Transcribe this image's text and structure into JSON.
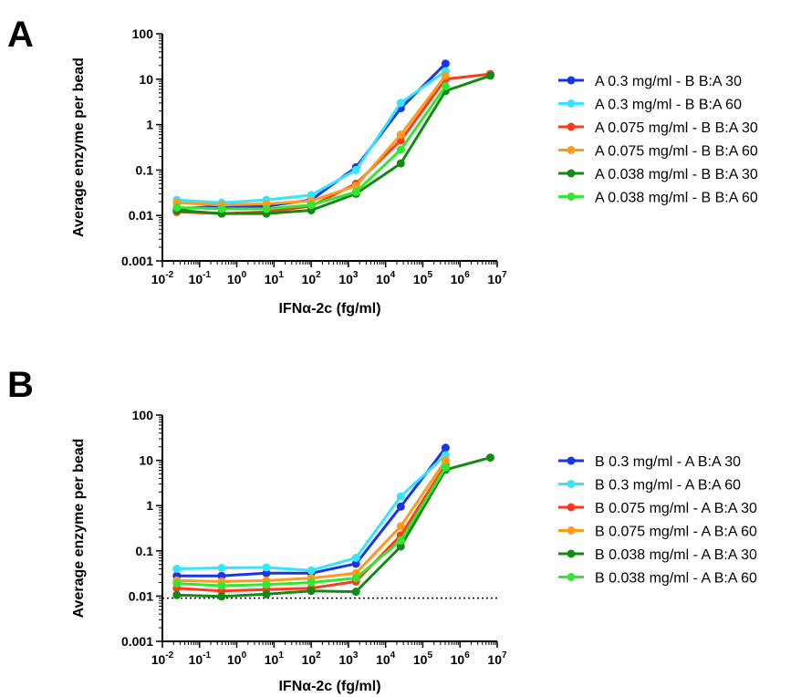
{
  "panels": [
    {
      "letter": "A"
    },
    {
      "letter": "B"
    }
  ],
  "chart_data": [
    {
      "type": "line",
      "panel": "A",
      "xlabel": "IFNα-2c (fg/ml)",
      "ylabel": "Average enzyme per bead",
      "xscale": "log",
      "yscale": "log",
      "xlim": [
        0.01,
        10000000
      ],
      "ylim": [
        0.001,
        100
      ],
      "x_ticks": [
        {
          "base": "10",
          "exp": "-2"
        },
        {
          "base": "10",
          "exp": "-1"
        },
        {
          "base": "10",
          "exp": "0"
        },
        {
          "base": "10",
          "exp": "1"
        },
        {
          "base": "10",
          "exp": "2"
        },
        {
          "base": "10",
          "exp": "3"
        },
        {
          "base": "10",
          "exp": "4"
        },
        {
          "base": "10",
          "exp": "5"
        },
        {
          "base": "10",
          "exp": "6"
        },
        {
          "base": "10",
          "exp": "7"
        }
      ],
      "y_ticks": [
        "0.001",
        "0.01",
        "0.1",
        "1",
        "10",
        "100"
      ],
      "legend": "right",
      "series": [
        {
          "name": "A 0.3 mg/ml - B B:A 30",
          "color": "#1a35e6",
          "x": [
            0.0244,
            0.39,
            6.25,
            100,
            1600,
            25600,
            409600
          ],
          "y": [
            0.014,
            0.016,
            0.016,
            0.022,
            0.115,
            2.3,
            22
          ]
        },
        {
          "name": "A 0.3 mg/ml - B B:A 60",
          "color": "#33e5ff",
          "x": [
            0.0244,
            0.39,
            6.25,
            100,
            1600,
            25600,
            409600
          ],
          "y": [
            0.022,
            0.019,
            0.022,
            0.028,
            0.1,
            3.0,
            15
          ]
        },
        {
          "name": "A 0.075 mg/ml - B B:A 30",
          "color": "#ff3a1a",
          "x": [
            0.0244,
            0.39,
            6.25,
            100,
            1600,
            25600,
            409600,
            6553600
          ],
          "y": [
            0.012,
            0.011,
            0.012,
            0.016,
            0.05,
            0.45,
            10,
            13
          ]
        },
        {
          "name": "A 0.075 mg/ml - B B:A 60",
          "color": "#ff9a1a",
          "x": [
            0.0244,
            0.39,
            6.25,
            100,
            1600,
            25600,
            409600
          ],
          "y": [
            0.019,
            0.017,
            0.018,
            0.021,
            0.045,
            0.6,
            12
          ]
        },
        {
          "name": "A 0.038 mg/ml - B B:A 30",
          "color": "#138a13",
          "x": [
            0.0244,
            0.39,
            6.25,
            100,
            1600,
            25600,
            409600,
            6553600
          ],
          "y": [
            0.013,
            0.011,
            0.011,
            0.013,
            0.03,
            0.14,
            5.5,
            12
          ]
        },
        {
          "name": "A 0.038 mg/ml - B B:A 60",
          "color": "#33e633",
          "x": [
            0.0244,
            0.39,
            6.25,
            100,
            1600,
            25600,
            409600
          ],
          "y": [
            0.015,
            0.014,
            0.014,
            0.017,
            0.033,
            0.28,
            7
          ]
        }
      ]
    },
    {
      "type": "line",
      "panel": "B",
      "xlabel": "IFNα-2c (fg/ml)",
      "ylabel": "Average enzyme per bead",
      "xscale": "log",
      "yscale": "log",
      "xlim": [
        0.01,
        10000000
      ],
      "ylim": [
        0.001,
        100
      ],
      "x_ticks": [
        {
          "base": "10",
          "exp": "-2"
        },
        {
          "base": "10",
          "exp": "-1"
        },
        {
          "base": "10",
          "exp": "0"
        },
        {
          "base": "10",
          "exp": "1"
        },
        {
          "base": "10",
          "exp": "2"
        },
        {
          "base": "10",
          "exp": "3"
        },
        {
          "base": "10",
          "exp": "4"
        },
        {
          "base": "10",
          "exp": "5"
        },
        {
          "base": "10",
          "exp": "6"
        },
        {
          "base": "10",
          "exp": "7"
        }
      ],
      "y_ticks": [
        "0.001",
        "0.01",
        "0.1",
        "1",
        "10",
        "100"
      ],
      "reference_line_y": 0.009,
      "legend": "right",
      "series": [
        {
          "name": "B 0.3 mg/ml - A B:A 30",
          "color": "#1a35e6",
          "x": [
            0.0244,
            0.39,
            6.25,
            100,
            1600,
            25600,
            409600
          ],
          "y": [
            0.028,
            0.028,
            0.032,
            0.032,
            0.052,
            0.95,
            19
          ]
        },
        {
          "name": "B 0.3 mg/ml - A B:A 60",
          "color": "#33e5ff",
          "x": [
            0.0244,
            0.39,
            6.25,
            100,
            1600,
            25600,
            409600
          ],
          "y": [
            0.04,
            0.042,
            0.043,
            0.037,
            0.07,
            1.6,
            13
          ]
        },
        {
          "name": "B 0.075 mg/ml - A B:A 30",
          "color": "#ff3a1a",
          "x": [
            0.0244,
            0.39,
            6.25,
            100,
            1600,
            25600,
            409600
          ],
          "y": [
            0.015,
            0.013,
            0.014,
            0.015,
            0.021,
            0.22,
            8
          ]
        },
        {
          "name": "B 0.075 mg/ml - A B:A 60",
          "color": "#ff9a1a",
          "x": [
            0.0244,
            0.39,
            6.25,
            100,
            1600,
            25600,
            409600
          ],
          "y": [
            0.022,
            0.021,
            0.022,
            0.025,
            0.032,
            0.35,
            10
          ]
        },
        {
          "name": "B 0.038 mg/ml - A B:A 30",
          "color": "#138a13",
          "x": [
            0.0244,
            0.39,
            6.25,
            100,
            1600,
            25600,
            409600,
            6553600
          ],
          "y": [
            0.0105,
            0.0098,
            0.011,
            0.013,
            0.0125,
            0.125,
            6.2,
            11.5
          ]
        },
        {
          "name": "B 0.038 mg/ml - A B:A 60",
          "color": "#33e633",
          "x": [
            0.0244,
            0.39,
            6.25,
            100,
            1600,
            25600,
            409600
          ],
          "y": [
            0.019,
            0.017,
            0.018,
            0.02,
            0.025,
            0.17,
            7
          ]
        }
      ]
    }
  ]
}
